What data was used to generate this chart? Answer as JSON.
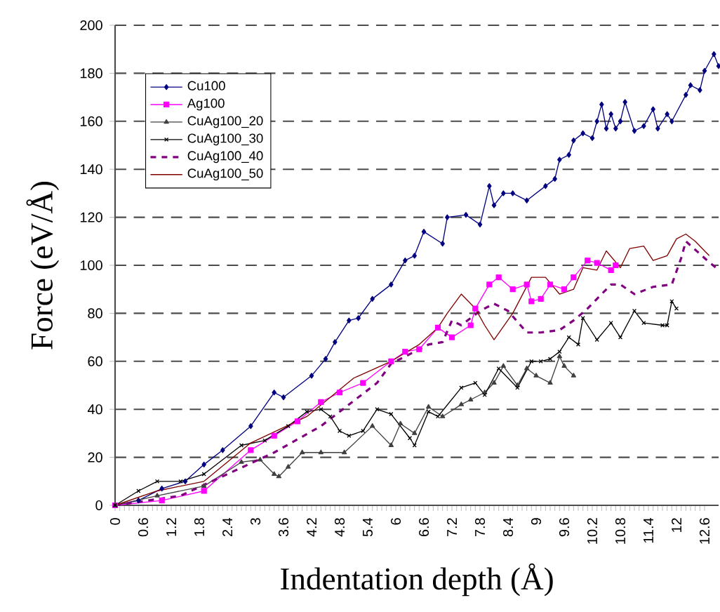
{
  "chart_data": {
    "type": "line",
    "xlabel": "Indentation depth (Å)",
    "ylabel": "Force  (eV/Å)",
    "xlim": [
      0,
      12.9
    ],
    "ylim": [
      0,
      200
    ],
    "xticks": [
      0,
      0.6,
      1.2,
      1.8,
      2.4,
      3,
      3.6,
      4.2,
      4.8,
      5.4,
      6,
      6.6,
      7.2,
      7.8,
      8.4,
      9,
      9.6,
      10.2,
      10.8,
      11.4,
      12,
      12.6
    ],
    "yticks": [
      0,
      20,
      40,
      60,
      80,
      100,
      120,
      140,
      160,
      180,
      200
    ],
    "grid": "y",
    "legend": "top left",
    "series": [
      {
        "name": "Cu100",
        "color": "#000080",
        "marker": "diamond",
        "line_style": "solid",
        "x": [
          0,
          0.5,
          1.0,
          1.5,
          1.9,
          2.3,
          2.9,
          3.4,
          3.6,
          4.2,
          4.5,
          4.7,
          5.0,
          5.2,
          5.5,
          5.9,
          6.2,
          6.4,
          6.6,
          7.0,
          7.1,
          7.5,
          7.8,
          8.0,
          8.1,
          8.3,
          8.5,
          8.8,
          9.2,
          9.4,
          9.5,
          9.7,
          9.8,
          10.0,
          10.2,
          10.3,
          10.4,
          10.5,
          10.6,
          10.7,
          10.8,
          10.9,
          11.1,
          11.3,
          11.5,
          11.6,
          11.8,
          11.9,
          12.2,
          12.3,
          12.5,
          12.6,
          12.8,
          12.9
        ],
        "values": [
          0,
          2,
          7,
          10,
          17,
          23,
          33,
          47,
          45,
          54,
          61,
          68,
          77,
          78,
          86,
          92,
          102,
          104,
          114,
          109,
          120,
          121,
          117,
          133,
          125,
          130,
          130,
          127,
          133,
          136,
          144,
          146,
          152,
          155,
          153,
          160,
          167,
          157,
          163,
          157,
          160,
          168,
          156,
          158,
          165,
          157,
          163,
          160,
          171,
          175,
          173,
          181,
          188,
          183
        ]
      },
      {
        "name": "Ag100",
        "color": "#ff00ff",
        "marker": "square",
        "line_style": "solid",
        "x": [
          0,
          1.0,
          1.9,
          2.9,
          3.4,
          3.9,
          4.4,
          4.8,
          5.3,
          5.9,
          6.2,
          6.5,
          6.9,
          7.2,
          7.6,
          7.7,
          8.0,
          8.2,
          8.5,
          8.8,
          8.9,
          9.1,
          9.3,
          9.6,
          9.8,
          10.1,
          10.3,
          10.6,
          10.7
        ],
        "values": [
          0,
          2,
          6,
          23,
          29,
          35,
          43,
          47,
          51,
          60,
          64,
          65,
          74,
          70,
          75,
          82,
          92,
          95,
          90,
          92,
          85,
          86,
          92,
          90,
          95,
          102,
          101,
          98,
          100
        ]
      },
      {
        "name": "CuAg100_20",
        "color": "#404040",
        "marker": "triangle",
        "line_style": "solid",
        "x": [
          0,
          0.9,
          1.9,
          2.7,
          3.1,
          3.4,
          3.5,
          3.7,
          4.0,
          4.4,
          4.9,
          5.5,
          5.9,
          6.1,
          6.4,
          6.7,
          7.0,
          7.4,
          7.6,
          7.9,
          8.1,
          8.3,
          8.6,
          8.8,
          9.0,
          9.3,
          9.5,
          9.6,
          9.8
        ],
        "values": [
          0,
          4,
          8,
          18,
          19,
          13,
          12,
          16,
          22,
          22,
          22,
          33,
          25,
          34,
          30,
          41,
          37,
          42,
          44,
          47,
          51,
          58,
          50,
          57,
          54,
          51,
          62,
          58,
          54
        ]
      },
      {
        "name": "CuAg100_30",
        "color": "#000000",
        "marker": "cross",
        "line_style": "solid",
        "x": [
          0,
          0.5,
          0.9,
          1.4,
          1.9,
          2.7,
          3.2,
          3.7,
          4.1,
          4.4,
          4.6,
          4.8,
          5.0,
          5.3,
          5.6,
          5.9,
          6.3,
          6.4,
          6.7,
          6.9,
          7.4,
          7.7,
          7.9,
          8.2,
          8.6,
          8.9,
          9.1,
          9.3,
          9.5,
          9.7,
          9.9,
          10.0,
          10.3,
          10.6,
          10.8,
          11.1,
          11.3,
          11.7,
          11.8,
          11.9,
          12.0
        ],
        "values": [
          0,
          6,
          10,
          10,
          13,
          25,
          27,
          33,
          39,
          40,
          37,
          31,
          29,
          31,
          40,
          38,
          28,
          25,
          39,
          37,
          49,
          51,
          46,
          57,
          49,
          60,
          60,
          61,
          64,
          70,
          67,
          78,
          69,
          76,
          70,
          81,
          76,
          75,
          75,
          85,
          82
        ]
      },
      {
        "name": "CuAg100_40",
        "color": "#800080",
        "marker": "none",
        "line_style": "dashed",
        "x": [
          0,
          1.4,
          3.4,
          4.4,
          5.6,
          5.9,
          6.7,
          7.0,
          7.2,
          7.4,
          7.8,
          8.1,
          8.4,
          8.8,
          9.1,
          9.5,
          9.8,
          10.1,
          10.3,
          10.6,
          10.8,
          11.1,
          11.5,
          11.9,
          12.1,
          12.2,
          12.6,
          12.9
        ],
        "values": [
          0,
          4,
          22,
          33,
          51,
          59,
          67,
          68,
          77,
          75,
          81,
          84,
          81,
          72,
          72,
          73,
          77,
          82,
          86,
          92,
          92,
          88,
          91,
          92,
          103,
          110,
          103,
          98
        ]
      },
      {
        "name": "CuAg100_50",
        "color": "#800000",
        "marker": "none",
        "line_style": "solid",
        "x": [
          0,
          0.9,
          1.9,
          2.9,
          4.1,
          5.1,
          5.9,
          6.5,
          6.9,
          7.1,
          7.4,
          7.7,
          7.9,
          8.1,
          8.5,
          8.9,
          9.2,
          9.5,
          9.8,
          10.0,
          10.3,
          10.5,
          10.8,
          11.0,
          11.3,
          11.5,
          11.8,
          12.0,
          12.2,
          12.4,
          12.6,
          12.7
        ],
        "values": [
          0,
          6,
          10,
          26,
          37,
          53,
          60,
          67,
          74,
          80,
          88,
          82,
          75,
          69,
          80,
          95,
          95,
          88,
          90,
          99,
          98,
          106,
          99,
          107,
          108,
          102,
          104,
          111,
          113,
          110,
          106,
          104
        ]
      }
    ]
  }
}
